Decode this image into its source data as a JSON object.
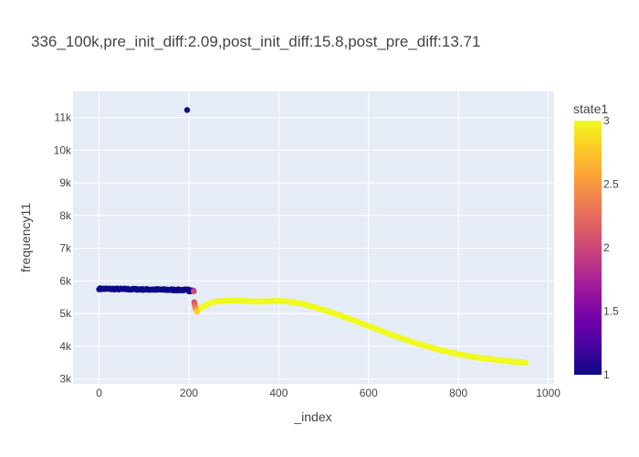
{
  "chart_data": {
    "type": "scatter",
    "title": "336_100k,pre_init_diff:2.09,post_init_diff:15.8,post_pre_diff:13.71",
    "xlabel": "_index",
    "ylabel": "frequency11",
    "xlim": [
      -58,
      1013
    ],
    "ylim": [
      2850,
      11800
    ],
    "x_ticks": [
      0,
      200,
      400,
      600,
      800,
      1000
    ],
    "x_tick_labels": [
      "0",
      "200",
      "400",
      "600",
      "800",
      "1000"
    ],
    "y_ticks": [
      3000,
      4000,
      5000,
      6000,
      7000,
      8000,
      9000,
      10000,
      11000
    ],
    "y_tick_labels": [
      "3k",
      "4k",
      "5k",
      "6k",
      "7k",
      "8k",
      "9k",
      "10k",
      "11k"
    ],
    "grid": true,
    "colorbar": {
      "title": "state1",
      "range": [
        1,
        3
      ],
      "ticks": [
        1,
        1.5,
        2,
        2.5,
        3
      ],
      "tick_labels": [
        "1",
        "1.5",
        "2",
        "2.5",
        "3"
      ],
      "colorscale": [
        "#0d0887",
        "#46039f",
        "#7201a8",
        "#9c179e",
        "#bd3786",
        "#d8576b",
        "#ed7953",
        "#fb9f3a",
        "#fdca26",
        "#f0f921"
      ]
    },
    "segments": [
      {
        "state": 1,
        "x_start": 0,
        "x_end": 210,
        "y_start": 5760,
        "y_end": 5720,
        "jitter": 40
      },
      {
        "state": 1,
        "x_start": 200,
        "x_end": 210,
        "y_start": 5680,
        "y_end": 5700,
        "jitter": 20
      }
    ],
    "transition_points": [
      {
        "x": 210,
        "y": 5700,
        "state": 1.7
      },
      {
        "x": 211,
        "y": 5680,
        "state": 2.0
      },
      {
        "x": 212,
        "y": 5350,
        "state": 2.1
      },
      {
        "x": 213,
        "y": 5280,
        "state": 2.2
      },
      {
        "x": 214,
        "y": 5200,
        "state": 2.3
      },
      {
        "x": 215,
        "y": 5150,
        "state": 2.4
      },
      {
        "x": 216,
        "y": 5100,
        "state": 2.6
      },
      {
        "x": 218,
        "y": 5060,
        "state": 2.8
      }
    ],
    "outliers": [
      {
        "x": 196,
        "y": 11230,
        "state": 1
      }
    ],
    "state3_curve": {
      "state": 3,
      "x": [
        220,
        230,
        240,
        250,
        260,
        280,
        300,
        320,
        350,
        380,
        400,
        420,
        450,
        480,
        500,
        530,
        560,
        600,
        650,
        700,
        750,
        800,
        850,
        900,
        950
      ],
      "y": [
        5120,
        5200,
        5280,
        5340,
        5370,
        5390,
        5400,
        5390,
        5370,
        5380,
        5390,
        5370,
        5310,
        5200,
        5110,
        4980,
        4830,
        4620,
        4360,
        4120,
        3920,
        3760,
        3640,
        3560,
        3500
      ]
    }
  }
}
